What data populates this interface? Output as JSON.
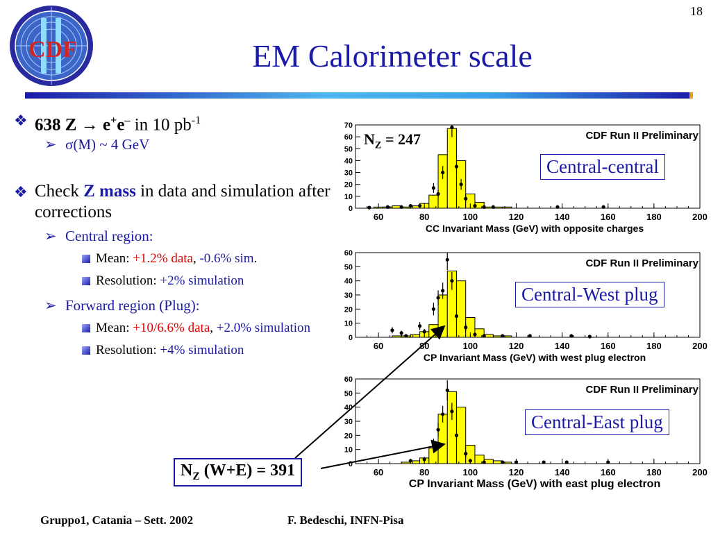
{
  "page_number": "18",
  "logo_text": "CDF",
  "title": "EM Calorimeter scale",
  "bullets": {
    "b1_count": "638 Z",
    "b1_arrow": "→",
    "b1_e": "e",
    "b1_plus": "+",
    "b1_e2": "e",
    "b1_minus": "–",
    "b1_rest": " in 10 pb",
    "b1_sup": "-1",
    "b1_sub": "σ(M) ~ 4 GeV",
    "b2_prefix": "Check ",
    "b2_key": "Z mass",
    "b2_rest": " in data and simulation after corrections",
    "central_region": "Central region:",
    "central_mean_label": "Mean: ",
    "central_mean_data": "+1.2% data",
    "central_mean_comma": ", ",
    "central_mean_sim": "-0.6% sim",
    "central_mean_period": ".",
    "central_res_label": "Resolution: ",
    "central_res_value": "+2% simulation",
    "forward_region": "Forward region (Plug):",
    "forward_mean_label": "Mean: ",
    "forward_mean_data": "+10/6.6% data",
    "forward_mean_comma": ", ",
    "forward_mean_sim": "+2.0% simulation",
    "forward_res_label": "Resolution: ",
    "forward_res_value": "+4% simulation"
  },
  "panel_labels": [
    "Central-central",
    "Central-West plug",
    "Central-East plug"
  ],
  "nz_central": {
    "main": "N",
    "sub": "Z",
    "rest": " = 247"
  },
  "nz_forward": {
    "main": "N",
    "sub": "Z",
    "rest": "  (W+E) = 391"
  },
  "footer": {
    "left": "Gruppo1, Catania – Sett. 2002",
    "right": "F. Bedeschi, INFN-Pisa"
  },
  "colors": {
    "title_blue": "#1a1aa6",
    "hist_fill": "#ffff00",
    "red": "#e00000"
  },
  "chart_data": [
    {
      "type": "bar",
      "title": "CDF Run II Preliminary",
      "xlabel": "CC Invariant Mass (GeV) with opposite charges",
      "ylabel": "",
      "xlim": [
        50,
        200
      ],
      "ylim": [
        0,
        70
      ],
      "xticks": [
        60,
        80,
        100,
        120,
        140,
        160,
        180,
        200
      ],
      "yticks": [
        0,
        10,
        20,
        30,
        40,
        50,
        60,
        70
      ],
      "bin_edges": [
        50,
        54,
        58,
        62,
        66,
        70,
        74,
        78,
        82,
        86,
        90,
        94,
        98,
        102,
        106,
        110,
        114,
        118,
        122,
        126,
        130,
        134,
        138,
        142,
        146,
        150,
        154,
        158,
        162,
        166,
        170,
        174,
        178,
        182,
        186,
        190,
        194,
        198,
        200
      ],
      "values": [
        0,
        0,
        1,
        1,
        2,
        1,
        2,
        4,
        11,
        45,
        67,
        40,
        12,
        5,
        1,
        1,
        1,
        0,
        0,
        0,
        0,
        0,
        0,
        0,
        0,
        0,
        0,
        0,
        0,
        0,
        0,
        0,
        0,
        0,
        0,
        0,
        0,
        0
      ],
      "points": [
        [
          56,
          0.5
        ],
        [
          64,
          1
        ],
        [
          70,
          1
        ],
        [
          74,
          2
        ],
        [
          78,
          2
        ],
        [
          84,
          17
        ],
        [
          86,
          12
        ],
        [
          88,
          30
        ],
        [
          92,
          68
        ],
        [
          94,
          35
        ],
        [
          96,
          20
        ],
        [
          98,
          8
        ],
        [
          102,
          2
        ],
        [
          106,
          1
        ],
        [
          110,
          1
        ],
        [
          138,
          1
        ],
        [
          158,
          1
        ]
      ]
    },
    {
      "type": "bar",
      "title": "CDF Run II Preliminary",
      "xlabel": "CP Invariant Mass (GeV) with west plug electron",
      "ylabel": "",
      "xlim": [
        50,
        200
      ],
      "ylim": [
        0,
        60
      ],
      "xticks": [
        60,
        80,
        100,
        120,
        140,
        160,
        180,
        200
      ],
      "yticks": [
        0,
        10,
        20,
        30,
        40,
        50,
        60
      ],
      "bin_edges": [
        50,
        54,
        58,
        62,
        66,
        70,
        74,
        78,
        82,
        86,
        90,
        94,
        98,
        102,
        106,
        110,
        114,
        118,
        122,
        126,
        130,
        134,
        138,
        142,
        146,
        150,
        154,
        158,
        162,
        166,
        170,
        174,
        178,
        182,
        186,
        190,
        194,
        198,
        200
      ],
      "values": [
        0,
        0,
        0,
        0,
        1,
        1,
        2,
        4,
        9,
        30,
        47,
        40,
        14,
        6,
        2,
        1,
        1,
        0,
        0,
        0,
        0,
        0,
        0,
        0,
        0,
        0,
        0,
        0,
        0,
        0,
        0,
        0,
        0,
        0,
        0,
        0,
        0,
        0
      ],
      "points": [
        [
          66,
          5
        ],
        [
          70,
          3
        ],
        [
          72,
          1
        ],
        [
          78,
          8
        ],
        [
          80,
          4
        ],
        [
          84,
          20
        ],
        [
          86,
          28
        ],
        [
          88,
          33
        ],
        [
          90,
          55
        ],
        [
          92,
          40
        ],
        [
          94,
          15
        ],
        [
          98,
          7
        ],
        [
          102,
          2
        ],
        [
          106,
          1
        ],
        [
          114,
          1
        ],
        [
          126,
          1
        ],
        [
          144,
          1
        ],
        [
          152,
          0.5
        ]
      ]
    },
    {
      "type": "bar",
      "title": "CDF Run II Preliminary",
      "xlabel": "CP Invariant Mass (GeV) with east plug electron",
      "ylabel": "",
      "xlim": [
        50,
        200
      ],
      "ylim": [
        0,
        60
      ],
      "xticks": [
        60,
        80,
        100,
        120,
        140,
        160,
        180,
        200
      ],
      "yticks": [
        0,
        10,
        20,
        30,
        40,
        50,
        60
      ],
      "bin_edges": [
        50,
        54,
        58,
        62,
        66,
        70,
        74,
        78,
        82,
        86,
        90,
        94,
        98,
        102,
        106,
        110,
        114,
        118,
        122,
        126,
        130,
        134,
        138,
        142,
        146,
        150,
        154,
        158,
        162,
        166,
        170,
        174,
        178,
        182,
        186,
        190,
        194,
        198,
        200
      ],
      "values": [
        0,
        0,
        0,
        0,
        0,
        1,
        2,
        4,
        11,
        35,
        51,
        40,
        13,
        6,
        3,
        2,
        1,
        0,
        0,
        0,
        0,
        0,
        0,
        0,
        0,
        0,
        0,
        0,
        0,
        0,
        0,
        0,
        0,
        0,
        0,
        0,
        0,
        0
      ],
      "points": [
        [
          74,
          2
        ],
        [
          80,
          3
        ],
        [
          84,
          14
        ],
        [
          86,
          24
        ],
        [
          88,
          35
        ],
        [
          90,
          52
        ],
        [
          92,
          37
        ],
        [
          94,
          20
        ],
        [
          98,
          7
        ],
        [
          100,
          2
        ],
        [
          106,
          1
        ],
        [
          114,
          1
        ],
        [
          120,
          1
        ],
        [
          132,
          1
        ],
        [
          142,
          1
        ],
        [
          160,
          1
        ]
      ]
    }
  ]
}
